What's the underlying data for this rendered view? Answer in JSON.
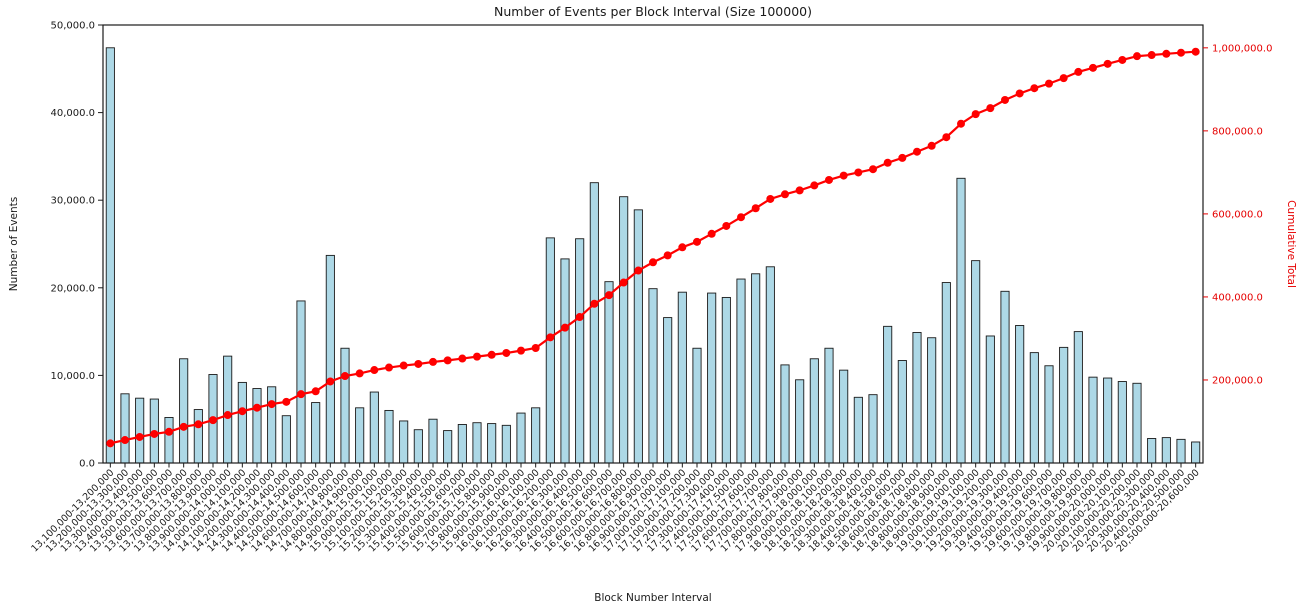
{
  "chart_data": {
    "type": "bar+line",
    "title": "Number of Events per Block Interval (Size 100000)",
    "xlabel": "Block Number Interval",
    "ylabel_left": "Number of Events",
    "ylabel_right": "Cumulative Total",
    "grid": false,
    "legend": "none",
    "ylim_left": [
      0,
      50000
    ],
    "ylim_right": [
      0,
      1055000
    ],
    "yticks_left": {
      "values": [
        0,
        10000,
        20000,
        30000,
        40000,
        50000
      ],
      "labels": [
        "0.0",
        "10,000.0",
        "20,000.0",
        "30,000.0",
        "40,000.0",
        "50,000.0"
      ]
    },
    "yticks_right": {
      "values": [
        200000,
        400000,
        600000,
        800000,
        1000000
      ],
      "labels": [
        "200,000.0",
        "400,000.0",
        "600,000.0",
        "800,000.0",
        "1,000,000.0"
      ]
    },
    "categories": [
      "13,100,000-13,200,000",
      "13,200,000-13,300,000",
      "13,300,000-13,400,000",
      "13,400,000-13,500,000",
      "13,500,000-13,600,000",
      "13,600,000-13,700,000",
      "13,700,000-13,800,000",
      "13,800,000-13,900,000",
      "13,900,000-14,000,000",
      "14,000,000-14,100,000",
      "14,100,000-14,200,000",
      "14,200,000-14,300,000",
      "14,300,000-14,400,000",
      "14,400,000-14,500,000",
      "14,500,000-14,600,000",
      "14,600,000-14,700,000",
      "14,700,000-14,800,000",
      "14,800,000-14,900,000",
      "14,900,000-15,000,000",
      "15,000,000-15,100,000",
      "15,100,000-15,200,000",
      "15,200,000-15,300,000",
      "15,300,000-15,400,000",
      "15,400,000-15,500,000",
      "15,500,000-15,600,000",
      "15,600,000-15,700,000",
      "15,700,000-15,800,000",
      "15,800,000-15,900,000",
      "15,900,000-16,000,000",
      "16,000,000-16,100,000",
      "16,100,000-16,200,000",
      "16,200,000-16,300,000",
      "16,300,000-16,400,000",
      "16,400,000-16,500,000",
      "16,500,000-16,600,000",
      "16,600,000-16,700,000",
      "16,700,000-16,800,000",
      "16,800,000-16,900,000",
      "16,900,000-17,000,000",
      "17,000,000-17,100,000",
      "17,100,000-17,200,000",
      "17,200,000-17,300,000",
      "17,300,000-17,400,000",
      "17,400,000-17,500,000",
      "17,500,000-17,600,000",
      "17,600,000-17,700,000",
      "17,700,000-17,800,000",
      "17,800,000-17,900,000",
      "17,900,000-18,000,000",
      "18,000,000-18,100,000",
      "18,100,000-18,200,000",
      "18,200,000-18,300,000",
      "18,300,000-18,400,000",
      "18,400,000-18,500,000",
      "18,500,000-18,600,000",
      "18,600,000-18,700,000",
      "18,700,000-18,800,000",
      "18,800,000-18,900,000",
      "18,900,000-19,000,000",
      "19,000,000-19,100,000",
      "19,100,000-19,200,000",
      "19,200,000-19,300,000",
      "19,300,000-19,400,000",
      "19,400,000-19,500,000",
      "19,500,000-19,600,000",
      "19,600,000-19,700,000",
      "19,700,000-19,800,000",
      "19,800,000-19,900,000",
      "19,900,000-20,000,000",
      "20,000,000-20,100,000",
      "20,100,000-20,200,000",
      "20,200,000-20,300,000",
      "20,300,000-20,400,000",
      "20,400,000-20,500,000",
      "20,500,000-20,600,000"
    ],
    "series": [
      {
        "name": "Number of Events",
        "type": "bar",
        "color": "#add8e6",
        "edge_color": "#1a1a1a",
        "values": [
          47400,
          7900,
          7400,
          7300,
          5200,
          11900,
          6100,
          10100,
          12200,
          9200,
          8500,
          8700,
          5400,
          18500,
          6900,
          23700,
          13100,
          6300,
          8100,
          6000,
          4800,
          3800,
          5000,
          3700,
          4400,
          4600,
          4500,
          4300,
          5700,
          6300,
          25700,
          23300,
          25600,
          32000,
          20700,
          30400,
          28900,
          19900,
          16600,
          19500,
          13100,
          19400,
          18900,
          21000,
          21600,
          22400,
          11200,
          9500,
          11900,
          13100,
          10600,
          7500,
          7800,
          15600,
          11700,
          14900,
          14300,
          20600,
          32500,
          23100,
          14500,
          19600,
          15700,
          12600,
          11100,
          13200,
          15000,
          9800,
          9700,
          9300,
          9100,
          2800,
          2900,
          2700,
          2400
        ]
      },
      {
        "name": "Cumulative Total",
        "type": "line",
        "color": "#ff0000",
        "values": [
          47400,
          55300,
          62700,
          70000,
          75200,
          87100,
          93200,
          103300,
          115500,
          124700,
          133200,
          141900,
          147300,
          165800,
          172700,
          196400,
          209500,
          215800,
          223900,
          229900,
          234700,
          238500,
          243500,
          247200,
          251600,
          256200,
          260700,
          265000,
          270700,
          277000,
          302700,
          326000,
          351600,
          383600,
          404300,
          434700,
          463600,
          483500,
          500100,
          519600,
          532700,
          552100,
          571000,
          592000,
          613600,
          636000,
          647200,
          656700,
          668600,
          681700,
          692300,
          699800,
          707600,
          723200,
          734900,
          749800,
          764100,
          784700,
          817200,
          840300,
          854800,
          874400,
          890100,
          902700,
          913800,
          927000,
          942000,
          951800,
          961500,
          970800,
          979900,
          982700,
          985600,
          988300,
          990700
        ]
      }
    ]
  }
}
